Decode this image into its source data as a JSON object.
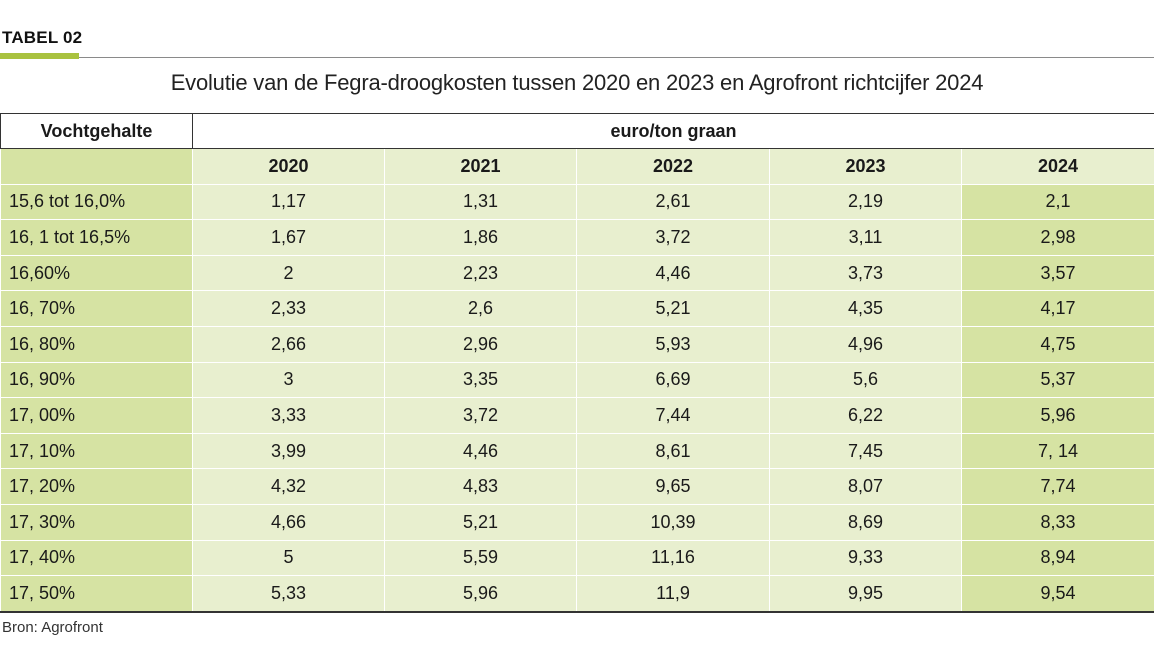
{
  "tag": "TABEL 02",
  "title": "Evolutie van de Fegra-droogkosten tussen 2020 en 2023 en Agrofront richtcijfer 2024",
  "table": {
    "row_header": "Vochtgehalte",
    "group_header": "euro/ton graan",
    "years": [
      "2020",
      "2021",
      "2022",
      "2023",
      "2024"
    ],
    "rows": [
      {
        "label": "15,6 tot 16,0%",
        "values": [
          "1,17",
          "1,31",
          "2,61",
          "2,19",
          "2,1"
        ]
      },
      {
        "label": "16, 1 tot 16,5%",
        "values": [
          "1,67",
          "1,86",
          "3,72",
          "3,11",
          "2,98"
        ]
      },
      {
        "label": "16,60%",
        "values": [
          "2",
          "2,23",
          "4,46",
          "3,73",
          "3,57"
        ]
      },
      {
        "label": "16, 70%",
        "values": [
          "2,33",
          "2,6",
          "5,21",
          "4,35",
          "4,17"
        ]
      },
      {
        "label": "16, 80%",
        "values": [
          "2,66",
          "2,96",
          "5,93",
          "4,96",
          "4,75"
        ]
      },
      {
        "label": "16, 90%",
        "values": [
          "3",
          "3,35",
          "6,69",
          "5,6",
          "5,37"
        ]
      },
      {
        "label": "17, 00%",
        "values": [
          "3,33",
          "3,72",
          "7,44",
          "6,22",
          "5,96"
        ]
      },
      {
        "label": "17, 10%",
        "values": [
          "3,99",
          "4,46",
          "8,61",
          "7,45",
          "7, 14"
        ]
      },
      {
        "label": "17, 20%",
        "values": [
          "4,32",
          "4,83",
          "9,65",
          "8,07",
          "7,74"
        ]
      },
      {
        "label": "17, 30%",
        "values": [
          "4,66",
          "5,21",
          "10,39",
          "8,69",
          "8,33"
        ]
      },
      {
        "label": "17, 40%",
        "values": [
          "5",
          "5,59",
          "11,16",
          "9,33",
          "8,94"
        ]
      },
      {
        "label": "17, 50%",
        "values": [
          "5,33",
          "5,96",
          "11,9",
          "9,95",
          "9,54"
        ]
      }
    ]
  },
  "source": "Bron: Agrofront",
  "colors": {
    "accent": "#a9c23f",
    "light_cell": "#e8efcf",
    "highlight_cell": "#d6e3a3"
  }
}
